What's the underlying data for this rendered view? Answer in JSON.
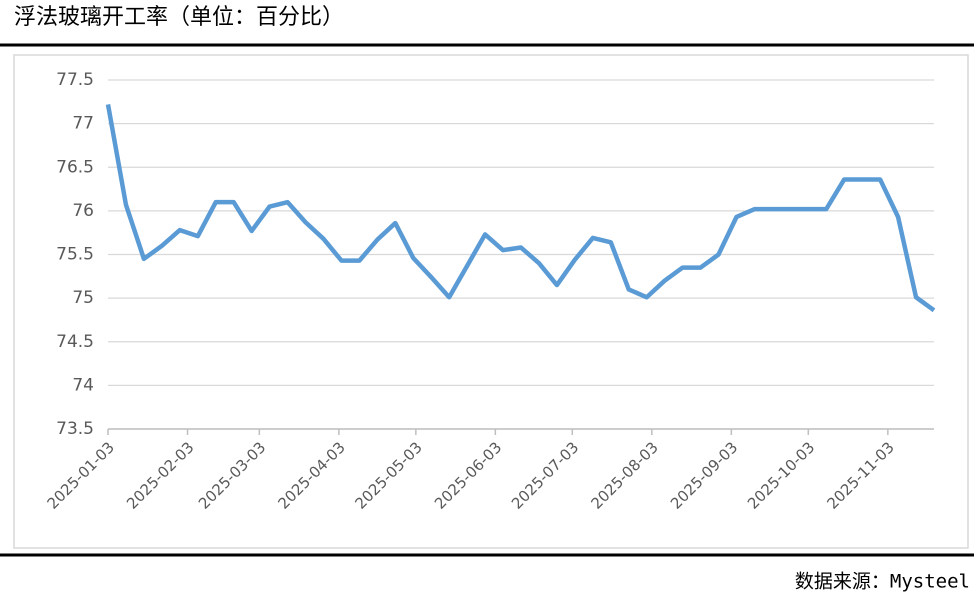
{
  "chart_data": {
    "type": "line",
    "title": "浮法玻璃开工率（单位：百分比）",
    "source": "数据来源：Mysteel",
    "x": [
      "2025-01-03",
      "2025-01-10",
      "2025-01-17",
      "2025-01-24",
      "2025-01-31",
      "2025-02-07",
      "2025-02-14",
      "2025-02-21",
      "2025-02-28",
      "2025-03-07",
      "2025-03-14",
      "2025-03-21",
      "2025-03-28",
      "2025-04-04",
      "2025-04-11",
      "2025-04-18",
      "2025-04-25",
      "2025-05-02",
      "2025-05-09",
      "2025-05-16",
      "2025-05-23",
      "2025-05-30",
      "2025-06-06",
      "2025-06-13",
      "2025-06-20",
      "2025-06-27",
      "2025-07-04",
      "2025-07-11",
      "2025-07-18",
      "2025-07-25",
      "2025-08-01",
      "2025-08-08",
      "2025-08-15",
      "2025-08-22",
      "2025-08-29",
      "2025-09-05",
      "2025-09-12",
      "2025-09-19",
      "2025-09-26",
      "2025-10-03",
      "2025-10-10",
      "2025-10-17",
      "2025-10-24",
      "2025-10-31",
      "2025-11-07",
      "2025-11-14",
      "2025-11-21"
    ],
    "series": [
      {
        "color": "#5b9bd5",
        "values": [
          77.22,
          76.07,
          75.45,
          75.6,
          75.78,
          75.71,
          76.1,
          76.1,
          75.77,
          76.05,
          76.1,
          75.87,
          75.68,
          75.43,
          75.43,
          75.67,
          75.86,
          75.46,
          75.24,
          75.01,
          75.37,
          75.73,
          75.55,
          75.58,
          75.4,
          75.15,
          75.44,
          75.69,
          75.64,
          75.1,
          75.01,
          75.2,
          75.35,
          75.35,
          75.5,
          75.93,
          76.02,
          76.02,
          76.02,
          76.02,
          76.02,
          76.36,
          76.36,
          76.36,
          75.93,
          75.01,
          74.86
        ]
      }
    ],
    "xlim": [
      "2025-01-03",
      "2025-11-21"
    ],
    "xticks": [
      "2025-01-03",
      "2025-02-03",
      "2025-03-03",
      "2025-04-03",
      "2025-05-03",
      "2025-06-03",
      "2025-07-03",
      "2025-08-03",
      "2025-09-03",
      "2025-10-03",
      "2025-11-03"
    ],
    "ylim": [
      73.5,
      77.5
    ],
    "yticks": [
      73.5,
      74,
      74.5,
      75,
      75.5,
      76,
      76.5,
      77,
      77.5
    ],
    "grid": true
  }
}
